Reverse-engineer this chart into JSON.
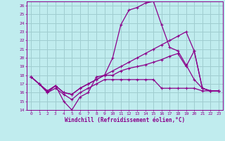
{
  "bg_color": "#c0ecee",
  "grid_color": "#a0cdd0",
  "line_color": "#8b008b",
  "xlabel": "Windchill (Refroidissement éolien,°C)",
  "xlabel_color": "#8b008b",
  "tick_color": "#8b008b",
  "spine_color": "#8b008b",
  "ylim": [
    14,
    26.5
  ],
  "xlim": [
    -0.5,
    23.5
  ],
  "yticks": [
    14,
    15,
    16,
    17,
    18,
    19,
    20,
    21,
    22,
    23,
    24,
    25,
    26
  ],
  "xticks": [
    0,
    1,
    2,
    3,
    4,
    5,
    6,
    7,
    8,
    9,
    10,
    11,
    12,
    13,
    14,
    15,
    16,
    17,
    18,
    19,
    20,
    21,
    22,
    23
  ],
  "lines": [
    [
      17.8,
      17.0,
      16.0,
      16.8,
      15.0,
      14.0,
      15.5,
      16.0,
      17.8,
      18.0,
      20.0,
      23.8,
      25.5,
      25.8,
      26.3,
      26.5,
      23.8,
      21.2,
      20.8,
      19.2,
      17.5,
      16.5,
      16.2,
      16.2
    ],
    [
      17.8,
      17.0,
      16.0,
      16.5,
      15.8,
      15.2,
      16.0,
      16.5,
      17.0,
      17.5,
      17.5,
      17.5,
      17.5,
      17.5,
      17.5,
      17.5,
      16.5,
      16.5,
      16.5,
      16.5,
      16.5,
      16.2,
      16.2,
      16.2
    ],
    [
      17.8,
      17.0,
      16.2,
      16.8,
      16.0,
      15.8,
      16.5,
      17.0,
      17.5,
      18.0,
      18.5,
      19.0,
      19.5,
      20.0,
      20.5,
      21.0,
      21.5,
      22.0,
      22.5,
      23.0,
      20.8,
      16.5,
      16.2,
      16.2
    ],
    [
      17.8,
      17.0,
      16.2,
      16.8,
      16.0,
      15.8,
      16.5,
      17.0,
      17.5,
      18.0,
      18.0,
      18.5,
      18.8,
      19.0,
      19.2,
      19.5,
      19.8,
      20.2,
      20.5,
      19.0,
      20.8,
      16.5,
      16.2,
      16.2
    ]
  ]
}
